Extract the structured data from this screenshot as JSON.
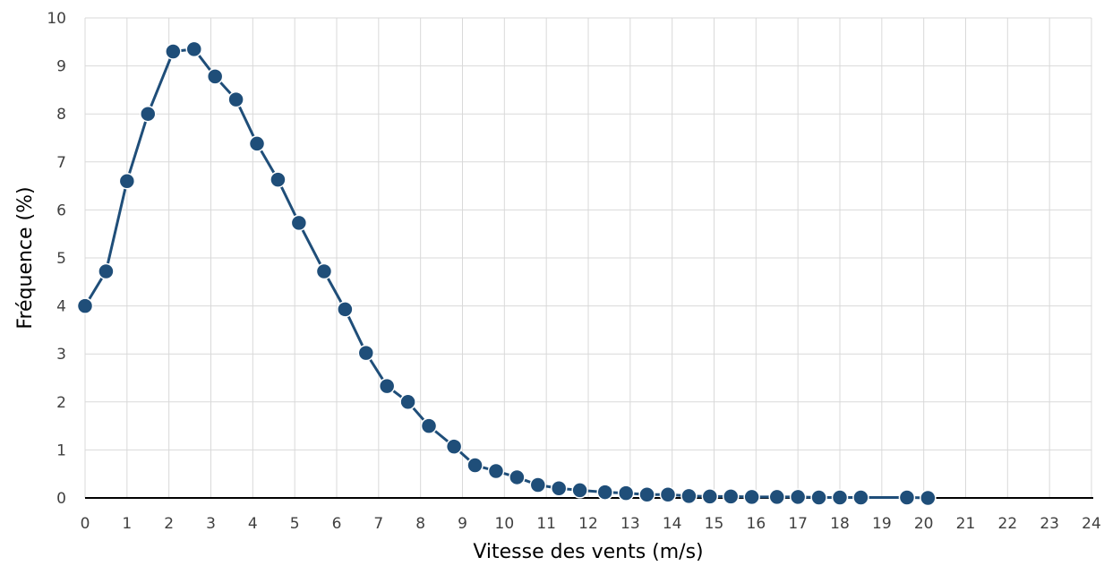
{
  "chart_data": {
    "type": "line",
    "title": "",
    "xlabel": "Vitesse des vents (m/s)",
    "ylabel": "Fréquence (%)",
    "xlim": [
      0,
      24
    ],
    "ylim": [
      0,
      10
    ],
    "x_ticks": [
      "0",
      "1",
      "2",
      "3",
      "4",
      "5",
      "6",
      "7",
      "8",
      "9",
      "10",
      "11",
      "12",
      "13",
      "14",
      "15",
      "16",
      "17",
      "18",
      "19",
      "20",
      "21",
      "22",
      "23",
      "24"
    ],
    "y_ticks": [
      "0",
      "1",
      "2",
      "3",
      "4",
      "5",
      "6",
      "7",
      "8",
      "9",
      "10"
    ],
    "grid": true,
    "legend": "none",
    "series": [
      {
        "color": "#1f4e79",
        "points": [
          [
            0,
            4.0
          ],
          [
            0.5,
            4.72
          ],
          [
            1.0,
            6.6
          ],
          [
            1.5,
            8.0
          ],
          [
            2.1,
            9.3
          ],
          [
            2.6,
            9.35
          ],
          [
            3.1,
            8.78
          ],
          [
            3.6,
            8.3
          ],
          [
            4.1,
            7.38
          ],
          [
            4.6,
            6.63
          ],
          [
            5.1,
            5.73
          ],
          [
            5.7,
            4.72
          ],
          [
            6.2,
            3.93
          ],
          [
            6.7,
            3.02
          ],
          [
            7.2,
            2.33
          ],
          [
            7.7,
            2.0
          ],
          [
            8.2,
            1.5
          ],
          [
            8.8,
            1.07
          ],
          [
            9.3,
            0.68
          ],
          [
            9.8,
            0.56
          ],
          [
            10.3,
            0.43
          ],
          [
            10.8,
            0.27
          ],
          [
            11.3,
            0.2
          ],
          [
            11.8,
            0.16
          ],
          [
            12.4,
            0.12
          ],
          [
            12.9,
            0.1
          ],
          [
            13.4,
            0.07
          ],
          [
            13.9,
            0.07
          ],
          [
            14.4,
            0.04
          ],
          [
            14.9,
            0.03
          ],
          [
            15.4,
            0.03
          ],
          [
            15.9,
            0.02
          ],
          [
            16.5,
            0.02
          ],
          [
            17.0,
            0.02
          ],
          [
            17.5,
            0.01
          ],
          [
            18.0,
            0.01
          ],
          [
            18.5,
            0.01
          ],
          [
            19.6,
            0.01
          ],
          [
            20.1,
            0.0
          ]
        ]
      }
    ]
  }
}
